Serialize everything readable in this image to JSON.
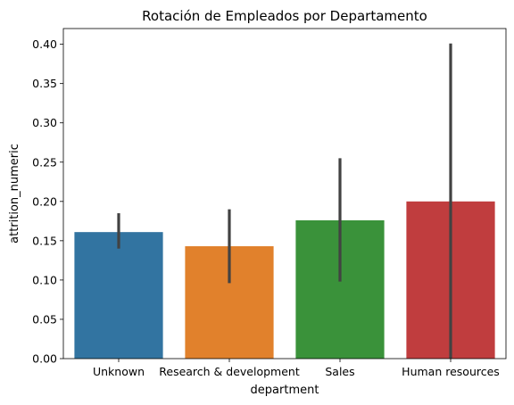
{
  "chart_data": {
    "type": "bar",
    "title": "Rotación de Empleados por Departamento",
    "xlabel": "department",
    "ylabel": "attrition_numeric",
    "categories": [
      "Unknown",
      "Research & development",
      "Sales",
      "Human resources"
    ],
    "values": [
      0.161,
      0.143,
      0.176,
      0.2
    ],
    "error_bars": [
      {
        "low": 0.14,
        "high": 0.185
      },
      {
        "low": 0.096,
        "high": 0.19
      },
      {
        "low": 0.098,
        "high": 0.255
      },
      {
        "low": 0.0,
        "high": 0.401
      }
    ],
    "colors": [
      "#3274a1",
      "#e1812c",
      "#3a923a",
      "#c03d3e"
    ],
    "error_color": "#424242",
    "ylim": [
      0,
      0.42
    ],
    "yticks": [
      "0.00",
      "0.05",
      "0.10",
      "0.15",
      "0.20",
      "0.25",
      "0.30",
      "0.35",
      "0.40"
    ],
    "grid": false,
    "legend": "none"
  }
}
